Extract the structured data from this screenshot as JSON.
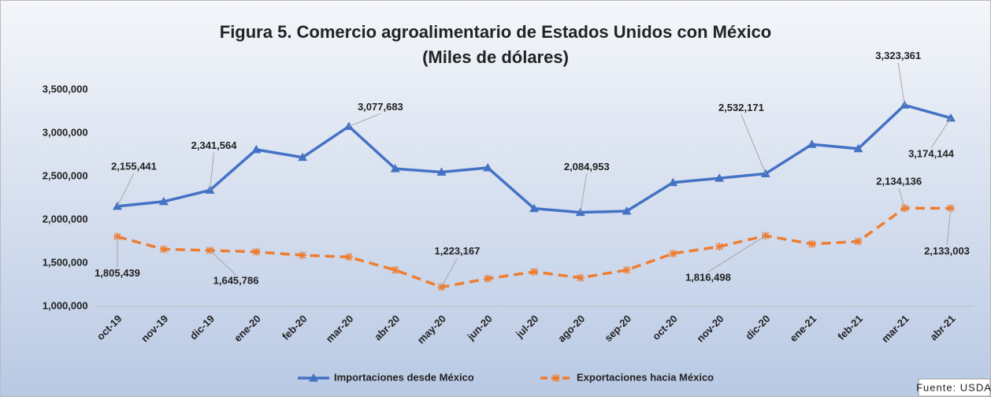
{
  "chart_data": {
    "type": "line",
    "title": "Figura 5. Comercio agroalimentario de Estados Unidos con México",
    "subtitle": "(Miles de dólares)",
    "source": "Fuente: USDA",
    "categories": [
      "oct-19",
      "nov-19",
      "dic-19",
      "ene-20",
      "feb-20",
      "mar-20",
      "abr-20",
      "may-20",
      "jun-20",
      "jul-20",
      "ago-20",
      "sep-20",
      "oct-20",
      "nov-20",
      "dic-20",
      "ene-21",
      "feb-21",
      "mar-21",
      "abr-21"
    ],
    "series": [
      {
        "name": "Importaciones desde México",
        "color": "#4472c4",
        "marker": "triangle",
        "values": [
          2155441,
          2210000,
          2341564,
          2810000,
          2720000,
          3077683,
          2590000,
          2550000,
          2600000,
          2130000,
          2084953,
          2100000,
          2430000,
          2480000,
          2532171,
          2870000,
          2820000,
          3323361,
          3174144
        ],
        "value_labels": [
          "2,155,441",
          null,
          "2,341,564",
          null,
          null,
          "3,077,683",
          null,
          null,
          null,
          null,
          "2,084,953",
          null,
          null,
          null,
          "2,532,171",
          null,
          null,
          "3,323,361",
          "3,174,144"
        ]
      },
      {
        "name": "Exportaciones hacia México",
        "color": "#ed7d31",
        "marker": "star",
        "dashed": true,
        "values": [
          1805439,
          1660000,
          1645786,
          1630000,
          1590000,
          1570000,
          1420000,
          1223167,
          1320000,
          1400000,
          1330000,
          1420000,
          1610000,
          1690000,
          1816498,
          1720000,
          1750000,
          2134136,
          2133003
        ],
        "value_labels": [
          "1,805,439",
          null,
          "1,645,786",
          null,
          null,
          null,
          null,
          "1,223,167",
          null,
          null,
          null,
          null,
          null,
          null,
          "1,816,498",
          null,
          null,
          "2,134,136",
          "2,133,003"
        ]
      }
    ],
    "ylim": [
      1000000,
      3500000
    ],
    "yticks": [
      {
        "value": 1000000,
        "label": "1,000,000"
      },
      {
        "value": 1500000,
        "label": "1,500,000"
      },
      {
        "value": 2000000,
        "label": "2,000,000"
      },
      {
        "value": 2500000,
        "label": "2,500,000"
      },
      {
        "value": 3000000,
        "label": "3,000,000"
      },
      {
        "value": 3500000,
        "label": "3,500,000"
      }
    ],
    "grid": false,
    "legend": "bottom"
  }
}
